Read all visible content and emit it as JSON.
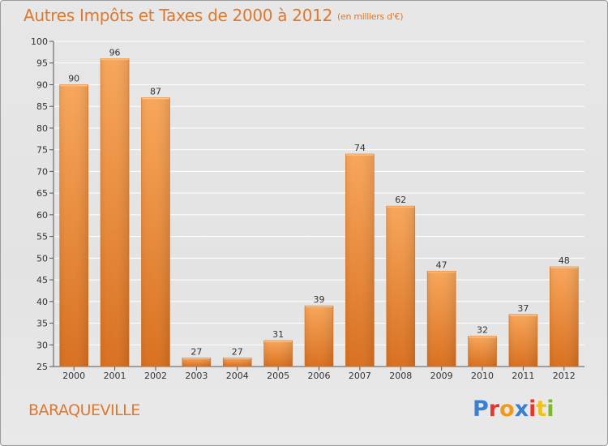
{
  "header": {
    "title": "Autres Impôts et Taxes de 2000 à 2012",
    "subtitle": "(en milliers d'€)"
  },
  "footer": {
    "commune": "BARAQUEVILLE",
    "logo_text": "Proxiti",
    "logo_colors": [
      "#3a7fd0",
      "#e8362a",
      "#f09a1c",
      "#3a7fd0",
      "#e8362a",
      "#f2c21a",
      "#7bb92b"
    ]
  },
  "chart_data": {
    "type": "bar",
    "categories": [
      "2000",
      "2001",
      "2002",
      "2003",
      "2004",
      "2005",
      "2006",
      "2007",
      "2008",
      "2009",
      "2010",
      "2011",
      "2012"
    ],
    "values": [
      90,
      96,
      87,
      27,
      27,
      31,
      39,
      74,
      62,
      47,
      32,
      37,
      48
    ],
    "value_labels": [
      "90",
      "96",
      "87",
      "27",
      "27",
      "31",
      "39",
      "74",
      "62",
      "47",
      "32",
      "37",
      "48"
    ],
    "y_ticks": [
      25,
      30,
      35,
      40,
      45,
      50,
      55,
      60,
      65,
      70,
      75,
      80,
      85,
      90,
      95,
      100
    ],
    "ylim": [
      25,
      100
    ],
    "grid": true,
    "bar_color_light": "#f8a65a",
    "bar_color_dark": "#d9701f"
  }
}
